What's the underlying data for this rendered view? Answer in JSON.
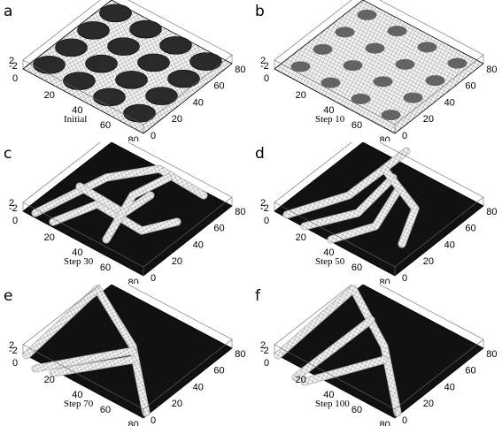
{
  "figure": {
    "panels": [
      {
        "letter": "a",
        "caption": "Initial"
      },
      {
        "letter": "b",
        "caption": "Step 10"
      },
      {
        "letter": "c",
        "caption": "Step 30"
      },
      {
        "letter": "d",
        "caption": "Step 50"
      },
      {
        "letter": "e",
        "caption": "Step 70"
      },
      {
        "letter": "f",
        "caption": "Step 100"
      }
    ],
    "axis_ticks": {
      "left_axis": [
        "20",
        "40",
        "60",
        "80"
      ],
      "right_axis": [
        "0",
        "20",
        "40",
        "60",
        "80"
      ],
      "origin": "0",
      "z_axis": [
        "2",
        "-2"
      ]
    }
  }
}
